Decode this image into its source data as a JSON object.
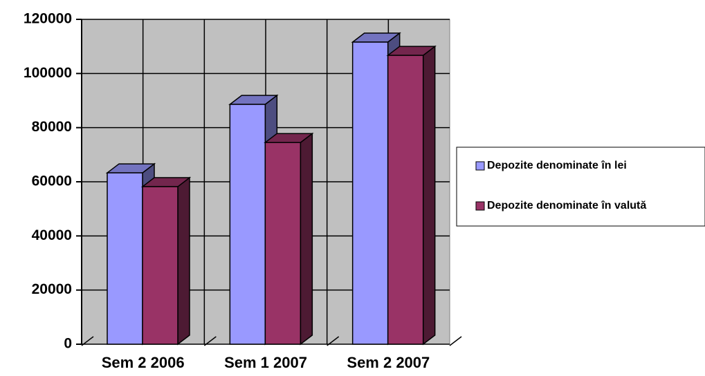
{
  "chart_data": {
    "type": "bar3d",
    "categories": [
      "Sem 2 2006",
      "Sem 1 2007",
      "Sem 2 2007"
    ],
    "series": [
      {
        "name": "Depozite denominate în lei",
        "color": "#9999ff",
        "values": [
          63300,
          88600,
          111600
        ]
      },
      {
        "name": "Depozite denominate în valută",
        "color": "#993366",
        "values": [
          58200,
          74500,
          106700
        ]
      }
    ],
    "ylim": [
      0,
      120000
    ],
    "yticks": [
      0,
      20000,
      40000,
      60000,
      80000,
      100000,
      120000
    ],
    "grid": true,
    "legend": "right"
  }
}
